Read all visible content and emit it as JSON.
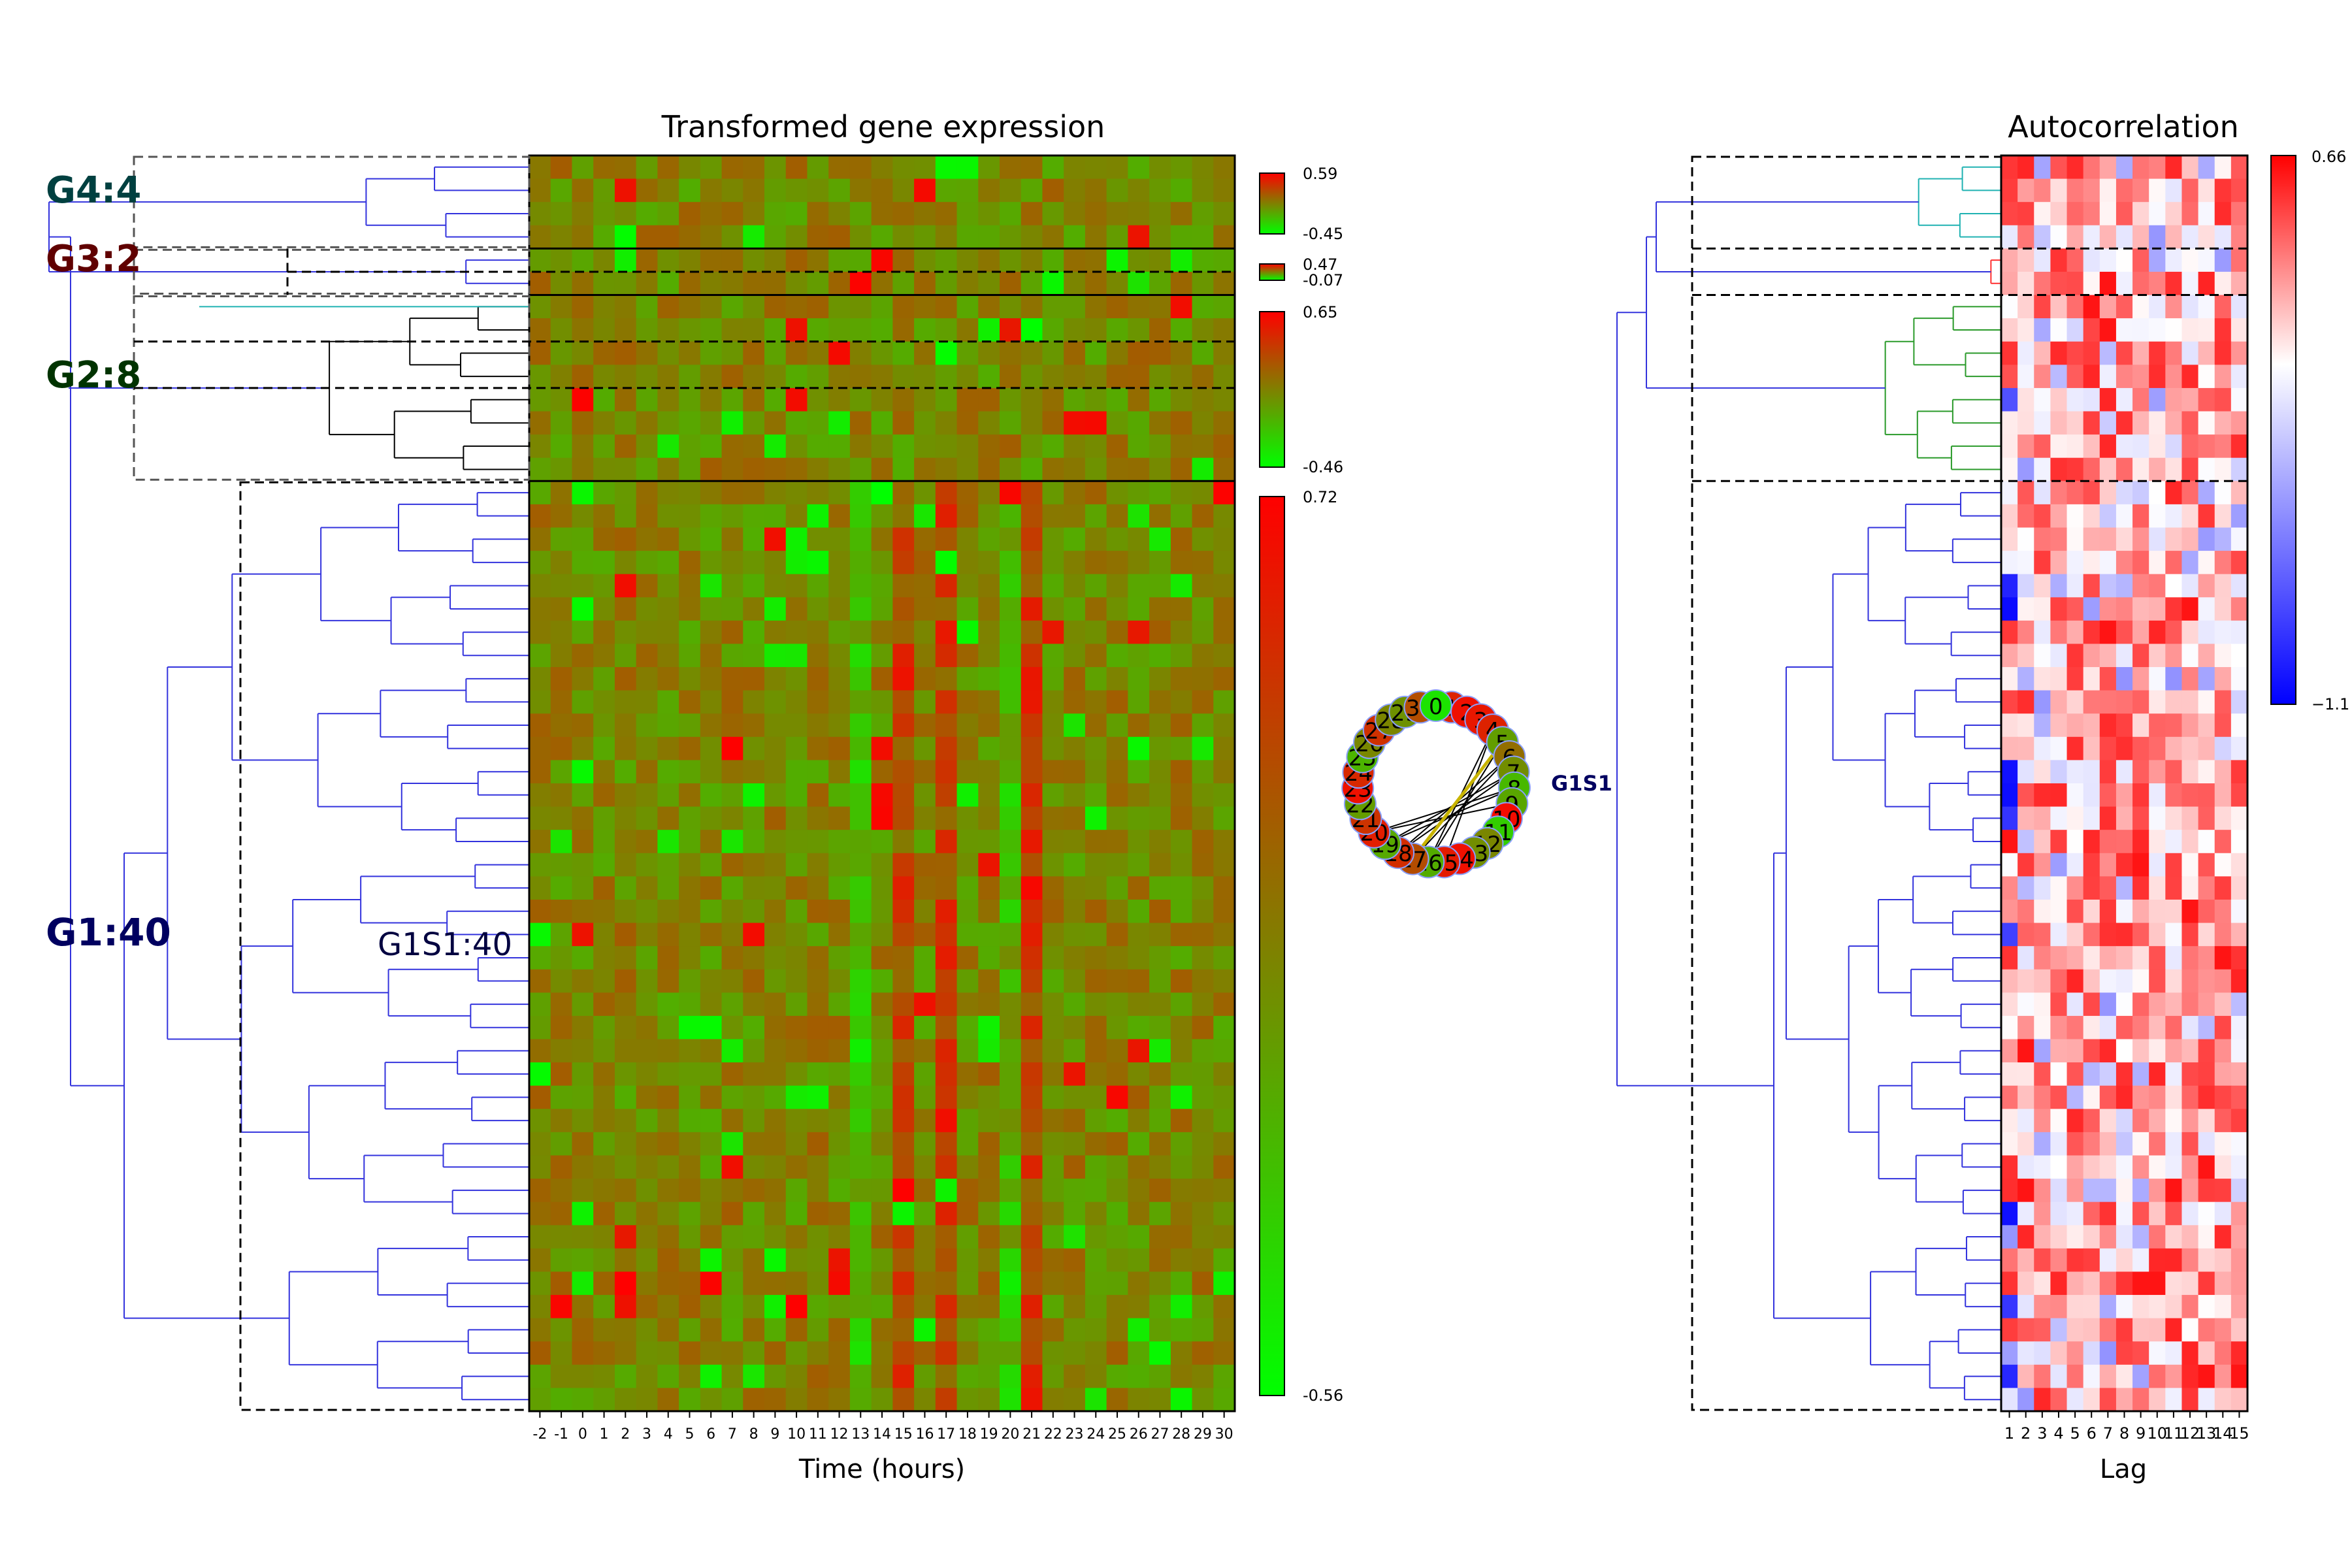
{
  "chart_data": [
    {
      "type": "heatmap",
      "title": "Transformed gene expression",
      "xlabel": "Time (hours)",
      "ylabel": "",
      "x": [
        -2,
        -1,
        0,
        1,
        2,
        3,
        4,
        5,
        6,
        7,
        8,
        9,
        10,
        11,
        12,
        13,
        14,
        15,
        16,
        17,
        18,
        19,
        20,
        21,
        22,
        23,
        24,
        25,
        26,
        27,
        28,
        29,
        30
      ],
      "row_count": 54,
      "colormap": {
        "low": "#00ff00",
        "mid": "#808000",
        "high": "#ff0000"
      },
      "groups": [
        {
          "label": "G4:4",
          "rows": 4,
          "color": "#004040",
          "colorbar": {
            "max": "0.59",
            "min": "-0.45"
          }
        },
        {
          "label": "G3:2",
          "rows": 2,
          "color": "#600000",
          "colorbar": {
            "max": "0.47",
            "min": "-0.07"
          }
        },
        {
          "label": "G2:8",
          "rows": 8,
          "color": "#003300",
          "colorbar": {
            "max": "0.65",
            "min": "-0.46"
          }
        },
        {
          "label": "G1:40",
          "rows": 40,
          "color": "#000060",
          "colorbar": {
            "max": "0.72",
            "min": "-0.56"
          }
        }
      ],
      "subgroup_label": "G1S1:40",
      "bright_red_columns": [
        15,
        17,
        21
      ],
      "bright_green_columns": [
        13,
        20
      ]
    },
    {
      "type": "heatmap",
      "title": "Autocorrelation",
      "xlabel": "Lag",
      "x": [
        1,
        2,
        3,
        4,
        5,
        6,
        7,
        8,
        9,
        10,
        11,
        12,
        13,
        14,
        15
      ],
      "colormap": {
        "low": "#0000ff",
        "mid": "#ffffff",
        "high": "#ff0000"
      },
      "colorbar": {
        "max": "0.66",
        "min": "−1.1"
      },
      "cluster_colors": [
        "#20b2b2",
        "#ff3030",
        "#2a9a2a",
        "#3333dd"
      ]
    },
    {
      "type": "network",
      "label": "G1S1",
      "nodes": [
        "1",
        "2",
        "3",
        "4",
        "5",
        "6",
        "7",
        "8",
        "9",
        "10",
        "11",
        "12",
        "13",
        "14",
        "15",
        "16",
        "17",
        "18",
        "19",
        "20",
        "21",
        "22",
        "23",
        "24",
        "25",
        "26",
        "27",
        "28",
        "29",
        "30",
        "0"
      ]
    }
  ]
}
